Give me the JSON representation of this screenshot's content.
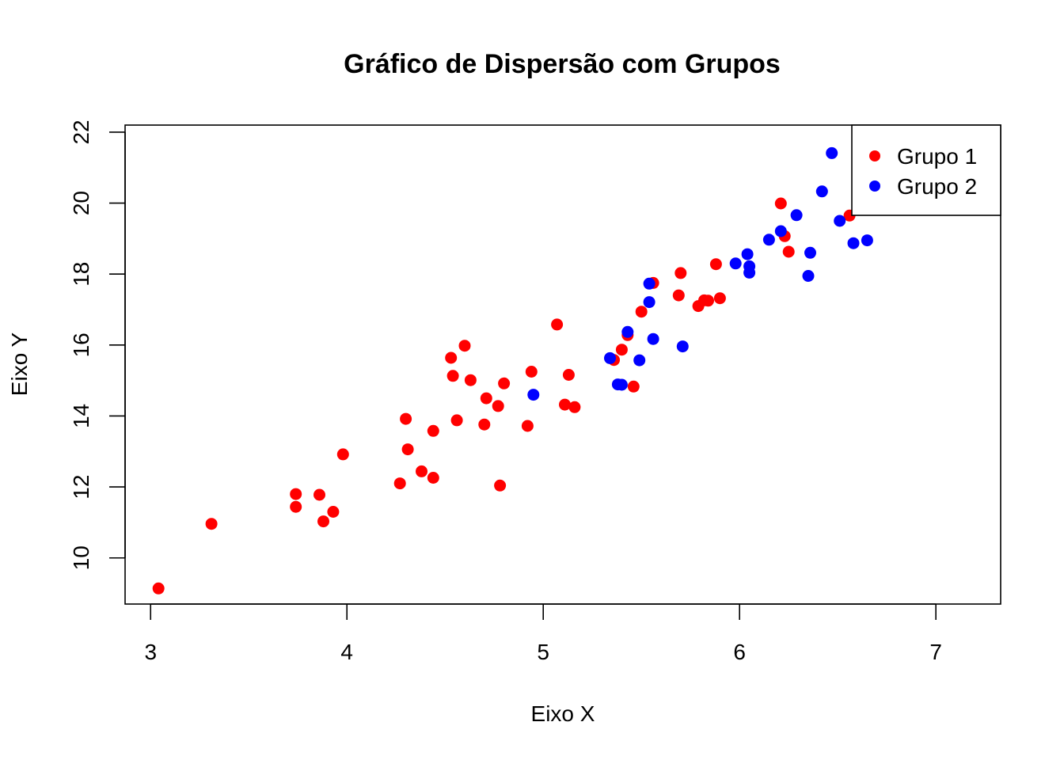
{
  "chart_data": {
    "type": "scatter",
    "title": "Gráfico de Dispersão com Grupos",
    "xlabel": "Eixo X",
    "ylabel": "Eixo Y",
    "xlim": [
      2.87,
      7.33
    ],
    "ylim": [
      8.7,
      22.2
    ],
    "xticks": [
      "3",
      "4",
      "5",
      "6",
      "7"
    ],
    "yticks": [
      "10",
      "12",
      "14",
      "16",
      "18",
      "20",
      "22"
    ],
    "legend": {
      "position": "top-right",
      "entries": [
        "Grupo 1",
        "Grupo 2"
      ]
    },
    "series": [
      {
        "name": "Grupo 1",
        "color": "#ff0000",
        "points": [
          [
            3.04,
            9.14
          ],
          [
            3.31,
            10.96
          ],
          [
            3.74,
            11.44
          ],
          [
            3.74,
            11.8
          ],
          [
            3.86,
            11.78
          ],
          [
            3.88,
            11.03
          ],
          [
            3.93,
            11.3
          ],
          [
            3.98,
            12.92
          ],
          [
            4.27,
            12.1
          ],
          [
            4.3,
            13.92
          ],
          [
            4.31,
            13.06
          ],
          [
            4.38,
            12.44
          ],
          [
            4.44,
            12.26
          ],
          [
            4.44,
            13.58
          ],
          [
            4.53,
            15.64
          ],
          [
            4.54,
            15.13
          ],
          [
            4.56,
            13.88
          ],
          [
            4.6,
            15.98
          ],
          [
            4.63,
            15.01
          ],
          [
            4.7,
            13.76
          ],
          [
            4.71,
            14.5
          ],
          [
            4.77,
            14.28
          ],
          [
            4.78,
            12.04
          ],
          [
            4.8,
            14.92
          ],
          [
            4.92,
            13.72
          ],
          [
            4.94,
            15.25
          ],
          [
            5.07,
            16.58
          ],
          [
            5.11,
            14.32
          ],
          [
            5.13,
            15.16
          ],
          [
            5.16,
            14.25
          ],
          [
            5.36,
            15.58
          ],
          [
            5.4,
            15.87
          ],
          [
            5.43,
            16.28
          ],
          [
            5.46,
            14.83
          ],
          [
            5.5,
            16.94
          ],
          [
            5.56,
            17.75
          ],
          [
            5.69,
            17.4
          ],
          [
            5.7,
            18.03
          ],
          [
            5.79,
            17.1
          ],
          [
            5.82,
            17.26
          ],
          [
            5.84,
            17.25
          ],
          [
            5.88,
            18.28
          ],
          [
            5.9,
            17.32
          ],
          [
            6.21,
            19.99
          ],
          [
            6.23,
            19.07
          ],
          [
            6.25,
            18.63
          ],
          [
            6.56,
            19.65
          ]
        ]
      },
      {
        "name": "Grupo 2",
        "color": "#0000ff",
        "points": [
          [
            4.95,
            14.6
          ],
          [
            5.34,
            15.63
          ],
          [
            5.38,
            14.89
          ],
          [
            5.4,
            14.88
          ],
          [
            5.43,
            16.37
          ],
          [
            5.49,
            15.57
          ],
          [
            5.54,
            17.21
          ],
          [
            5.54,
            17.73
          ],
          [
            5.56,
            16.17
          ],
          [
            5.71,
            15.96
          ],
          [
            5.98,
            18.3
          ],
          [
            6.04,
            18.56
          ],
          [
            6.05,
            18.04
          ],
          [
            6.05,
            18.22
          ],
          [
            6.15,
            18.97
          ],
          [
            6.21,
            19.21
          ],
          [
            6.29,
            19.66
          ],
          [
            6.35,
            17.95
          ],
          [
            6.36,
            18.6
          ],
          [
            6.42,
            20.33
          ],
          [
            6.47,
            21.41
          ],
          [
            6.51,
            19.5
          ],
          [
            6.58,
            18.87
          ],
          [
            6.65,
            18.95
          ]
        ]
      }
    ]
  }
}
